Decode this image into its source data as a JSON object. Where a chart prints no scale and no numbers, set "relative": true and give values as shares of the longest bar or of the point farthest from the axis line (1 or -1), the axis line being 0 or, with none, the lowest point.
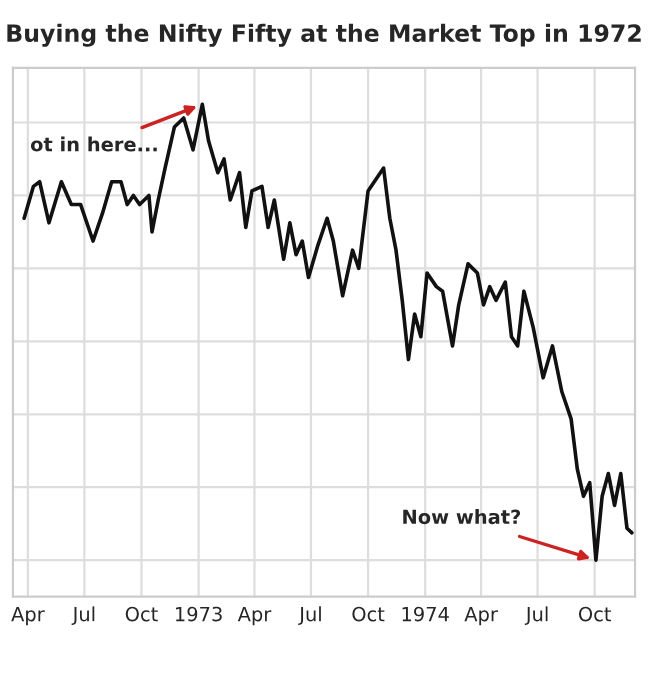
{
  "chart_data": {
    "type": "line",
    "title": "Buying the Nifty Fifty at the Market Top in 1972",
    "relative": true,
    "grid": true,
    "legend": false,
    "marker": "none",
    "line_style": "solid",
    "x": [
      "1972-03-26",
      "1972-04-10",
      "1972-04-20",
      "1972-05-05",
      "1972-05-25",
      "1972-06-10",
      "1972-06-25",
      "1972-07-15",
      "1972-07-30",
      "1972-08-14",
      "1972-08-29",
      "1972-09-08",
      "1972-09-18",
      "1972-09-28",
      "1972-10-13",
      "1972-10-18",
      "1972-10-28",
      "1972-11-08",
      "1972-11-23",
      "1972-12-08",
      "1972-12-23",
      "1973-01-07",
      "1973-01-17",
      "1973-02-01",
      "1973-02-11",
      "1973-02-21",
      "1973-03-08",
      "1973-03-18",
      "1973-03-28",
      "1973-04-13",
      "1973-04-23",
      "1973-05-03",
      "1973-05-18",
      "1973-05-28",
      "1973-06-07",
      "1973-06-17",
      "1973-06-27",
      "1973-07-12",
      "1973-07-27",
      "1973-08-06",
      "1973-08-21",
      "1973-09-06",
      "1973-09-16",
      "1973-10-01",
      "1973-10-11",
      "1973-10-26",
      "1973-11-05",
      "1973-11-15",
      "1973-11-25",
      "1973-12-05",
      "1973-12-15",
      "1973-12-25",
      "1974-01-04",
      "1974-01-19",
      "1974-01-29",
      "1974-02-14",
      "1974-02-24",
      "1974-03-11",
      "1974-03-26",
      "1974-04-05",
      "1974-04-15",
      "1974-04-25",
      "1974-05-10",
      "1974-05-20",
      "1974-05-30",
      "1974-06-09",
      "1974-06-24",
      "1974-07-10",
      "1974-07-25",
      "1974-08-09",
      "1974-08-24",
      "1974-09-03",
      "1974-09-13",
      "1974-09-23",
      "1974-10-03",
      "1974-10-13",
      "1974-10-23",
      "1974-11-02",
      "1974-11-12",
      "1974-11-22",
      "1974-11-30"
    ],
    "series": [
      {
        "color": "#111111",
        "values": [
          0.75,
          0.82,
          0.83,
          0.74,
          0.83,
          0.78,
          0.78,
          0.7,
          0.76,
          0.83,
          0.83,
          0.78,
          0.8,
          0.78,
          0.8,
          0.72,
          0.79,
          0.86,
          0.95,
          0.97,
          0.9,
          1.0,
          0.92,
          0.85,
          0.88,
          0.79,
          0.85,
          0.73,
          0.81,
          0.82,
          0.73,
          0.79,
          0.66,
          0.74,
          0.67,
          0.7,
          0.62,
          0.69,
          0.75,
          0.7,
          0.58,
          0.68,
          0.64,
          0.81,
          0.83,
          0.86,
          0.75,
          0.68,
          0.57,
          0.44,
          0.54,
          0.49,
          0.63,
          0.6,
          0.59,
          0.47,
          0.56,
          0.65,
          0.63,
          0.56,
          0.6,
          0.57,
          0.61,
          0.49,
          0.47,
          0.59,
          0.51,
          0.4,
          0.47,
          0.37,
          0.31,
          0.2,
          0.14,
          0.17,
          0.0,
          0.14,
          0.19,
          0.12,
          0.19,
          0.07,
          0.06
        ]
      }
    ],
    "xlim": [
      "1972-03-08",
      "1974-12-05"
    ],
    "xticks": [
      {
        "value": "1972-04-01",
        "label": "Apr"
      },
      {
        "value": "1972-07-01",
        "label": "Jul"
      },
      {
        "value": "1972-10-01",
        "label": "Oct"
      },
      {
        "value": "1973-01-01",
        "label": "1973"
      },
      {
        "value": "1973-04-01",
        "label": "Apr"
      },
      {
        "value": "1973-07-01",
        "label": "Jul"
      },
      {
        "value": "1973-10-01",
        "label": "Oct"
      },
      {
        "value": "1974-01-01",
        "label": "1974"
      },
      {
        "value": "1974-04-01",
        "label": "Apr"
      },
      {
        "value": "1974-07-01",
        "label": "Jul"
      },
      {
        "value": "1974-10-01",
        "label": "Oct"
      }
    ],
    "annotations": [
      {
        "text": "ot in here...",
        "x": "1973-01-07",
        "y": 1.0
      },
      {
        "text": "Now what?",
        "x": "1974-10-03",
        "y": 0.0
      }
    ]
  }
}
